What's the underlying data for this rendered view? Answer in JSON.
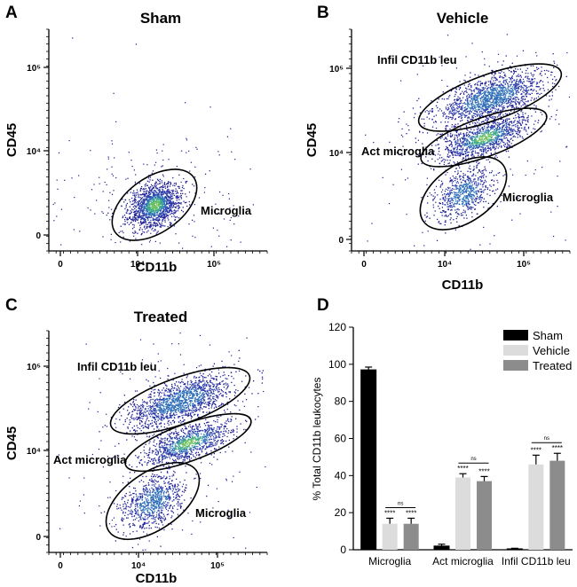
{
  "chart_data": [
    {
      "panel": "A",
      "type": "scatter",
      "title": "Sham",
      "xlabel": "CD11b",
      "ylabel": "CD45",
      "x_ticks": [
        "0",
        "10⁴",
        "10⁵"
      ],
      "y_ticks": [
        "0",
        "10⁴",
        "10⁵"
      ],
      "gates": [
        {
          "label": "Microglia",
          "density": 0.9
        }
      ]
    },
    {
      "panel": "B",
      "type": "scatter",
      "title": "Vehicle",
      "xlabel": "CD11b",
      "ylabel": "CD45",
      "x_ticks": [
        "0",
        "10⁴",
        "10⁵"
      ],
      "y_ticks": [
        "0",
        "10⁴",
        "10⁵"
      ],
      "gates": [
        {
          "label": "Infil CD11b leu",
          "density": 0.95
        },
        {
          "label": "Act microglia",
          "density": 0.8
        },
        {
          "label": "Microglia",
          "density": 0.5
        }
      ]
    },
    {
      "panel": "C",
      "type": "scatter",
      "title": "Treated",
      "xlabel": "CD11b",
      "ylabel": "CD45",
      "x_ticks": [
        "0",
        "10⁴",
        "10⁵"
      ],
      "y_ticks": [
        "0",
        "10⁴",
        "10⁵"
      ],
      "gates": [
        {
          "label": "Infil CD11b leu",
          "density": 0.9
        },
        {
          "label": "Act microglia",
          "density": 0.75
        },
        {
          "label": "Microglia",
          "density": 0.55
        }
      ]
    },
    {
      "panel": "D",
      "type": "bar",
      "title": "",
      "xlabel": "",
      "ylabel": "% Total CD11b leukocytes",
      "ylim": [
        0,
        120
      ],
      "y_ticks": [
        0,
        20,
        40,
        60,
        80,
        100,
        120
      ],
      "categories": [
        "Microglia",
        "Act microglia",
        "Infil CD11b leu"
      ],
      "legend_position": "top-right",
      "series": [
        {
          "name": "Sham",
          "color": "#000000",
          "values": [
            97,
            2,
            0.5
          ],
          "errors": [
            1.5,
            1,
            0.3
          ],
          "stars": [
            "",
            "",
            ""
          ]
        },
        {
          "name": "Vehicle",
          "color": "#dcdcdc",
          "values": [
            14,
            39,
            46
          ],
          "errors": [
            3,
            2,
            5
          ],
          "stars": [
            "****",
            "****",
            "****"
          ]
        },
        {
          "name": "Treated",
          "color": "#8c8c8c",
          "values": [
            14,
            37,
            48
          ],
          "errors": [
            3,
            2.5,
            4
          ],
          "stars": [
            "****",
            "****",
            "****"
          ]
        }
      ],
      "comparisons": [
        "ns",
        "ns",
        "ns"
      ]
    }
  ]
}
